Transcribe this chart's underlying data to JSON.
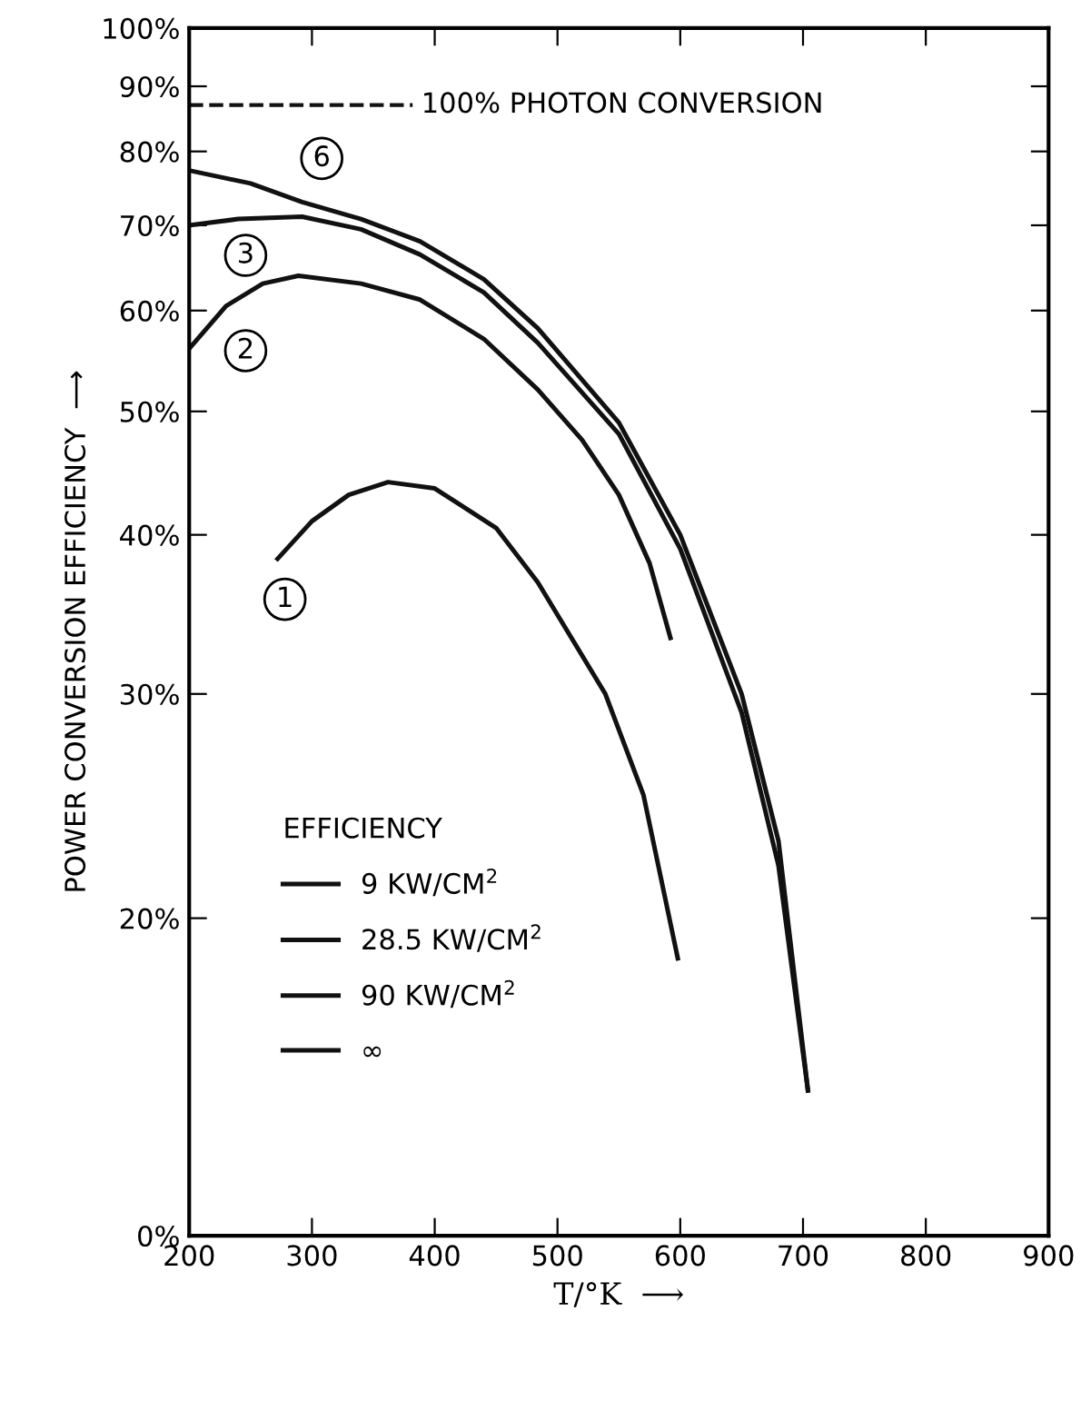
{
  "chart_data": {
    "type": "line",
    "xlabel": "T/°K  ⟶",
    "ylabel": "POWER CONVERSION EFFICIENCY  ⟶",
    "legend_title": "EFFICIENCY",
    "legend": "bottom left",
    "log": true,
    "marker": "none",
    "line_style": "solid",
    "grid": false,
    "xlim": [
      200,
      900
    ],
    "xticks": [
      200,
      300,
      400,
      500,
      600,
      700,
      800,
      900
    ],
    "ylim": [
      0,
      100
    ],
    "yticks": [
      {
        "value": 0,
        "label": "0%"
      },
      {
        "value": 20,
        "label": "20%"
      },
      {
        "value": 30,
        "label": "30%"
      },
      {
        "value": 40,
        "label": "40%"
      },
      {
        "value": 50,
        "label": "50%"
      },
      {
        "value": 60,
        "label": "60%"
      },
      {
        "value": 70,
        "label": "70%"
      },
      {
        "value": 80,
        "label": "80%"
      },
      {
        "value": 90,
        "label": "90%"
      },
      {
        "value": 100,
        "label": "100%"
      }
    ],
    "series": [
      {
        "name": "9 KW/CM$^{2}$",
        "color": "#111111",
        "x": [
          272,
          300,
          330,
          362,
          400,
          450,
          484,
          539,
          570,
          598
        ],
        "values": [
          38.3,
          41,
          43,
          44,
          43.5,
          40.5,
          36.7,
          30,
          25,
          18.6
        ]
      },
      {
        "name": "28.5 KW/CM$^{2}$",
        "color": "#111111",
        "x": [
          200,
          230,
          260,
          289,
          340,
          388,
          440,
          484,
          520,
          550,
          575,
          592
        ],
        "values": [
          56,
          60.5,
          63,
          63.9,
          63,
          61.2,
          57,
          52,
          47.5,
          43,
          38,
          33.2
        ]
      },
      {
        "name": "90 KW/CM$^{2}$",
        "color": "#111111",
        "x": [
          200,
          240,
          292,
          340,
          388,
          440,
          484,
          550,
          600,
          650,
          680,
          704
        ],
        "values": [
          70,
          70.8,
          71.1,
          69.5,
          66.4,
          62,
          56.6,
          48,
          39,
          29,
          22,
          14.65
        ]
      },
      {
        "name": "∞",
        "color": "#111111",
        "x": [
          200,
          250,
          292,
          340,
          388,
          440,
          484,
          550,
          600,
          650,
          680,
          704
        ],
        "values": [
          77.3,
          75.5,
          73,
          70.8,
          68,
          63.5,
          58.1,
          49,
          40,
          30,
          23,
          14.65
        ]
      }
    ],
    "ref_lines": [
      {
        "axis": "y",
        "value": 87,
        "label": "100% PHOTON CONVERSION",
        "line_style": "dashed",
        "color": "#111111"
      }
    ],
    "annotations": [
      {
        "text": "1",
        "x": 278,
        "y": 35.6
      },
      {
        "text": "2",
        "x": 246,
        "y": 55.8
      },
      {
        "text": "3",
        "x": 246,
        "y": 66.3
      },
      {
        "text": "6",
        "x": 308,
        "y": 79
      }
    ]
  }
}
